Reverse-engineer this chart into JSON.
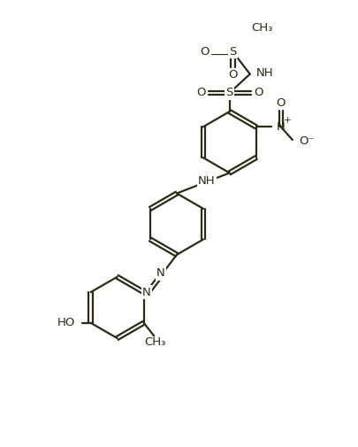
{
  "bg_color": "#ffffff",
  "line_color": "#2a2a15",
  "text_color": "#2a2a15",
  "figsize": [
    4.06,
    5.05
  ],
  "dpi": 100,
  "line_width": 1.6,
  "font_size": 9.5,
  "xlim": [
    0,
    8.12
  ],
  "ylim": [
    0,
    10.1
  ]
}
